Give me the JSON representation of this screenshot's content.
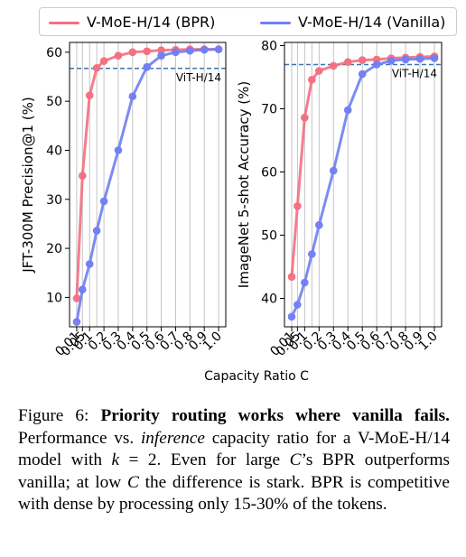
{
  "legend": {
    "bpr_label": "V-MoE-H/14 (BPR)",
    "vanilla_label": "V-MoE-H/14 (Vanilla)"
  },
  "colors": {
    "bpr": "#f2707f",
    "vanilla": "#707ef2",
    "baseline": "#3f74a8",
    "grid": "#bdbdbd"
  },
  "shared_xlabel": "Capacity Ratio C",
  "chart_data": [
    {
      "type": "line",
      "ylabel": "JFT-300M Precision@1 (%)",
      "x_categories": [
        "0.01",
        "0.05",
        "0.1",
        "0.2",
        "0.3",
        "0.4",
        "0.5",
        "0.6",
        "0.7",
        "0.8",
        "0.9",
        "1.0"
      ],
      "x": [
        0.01,
        0.05,
        0.1,
        0.15,
        0.2,
        0.3,
        0.4,
        0.5,
        0.6,
        0.7,
        0.8,
        0.9,
        1.0
      ],
      "ylim": [
        4,
        62
      ],
      "yticks": [
        10,
        20,
        30,
        40,
        50,
        60
      ],
      "grid": "vertical",
      "baseline": {
        "label": "ViT-H/14",
        "value": 56.7
      },
      "series": [
        {
          "name": "V-MoE-H/14 (BPR)",
          "values": [
            9.8,
            34.8,
            51.2,
            56.8,
            58.2,
            59.3,
            60.0,
            60.2,
            60.4,
            60.5,
            60.6,
            60.6,
            60.6
          ]
        },
        {
          "name": "V-MoE-H/14 (Vanilla)",
          "values": [
            5.0,
            11.6,
            16.8,
            23.6,
            29.6,
            40.0,
            51.0,
            57.0,
            59.3,
            60.0,
            60.3,
            60.5,
            60.6
          ]
        }
      ]
    },
    {
      "type": "line",
      "ylabel": "ImageNet 5-shot Accuracy (%)",
      "x_categories": [
        "0.01",
        "0.05",
        "0.1",
        "0.2",
        "0.3",
        "0.4",
        "0.5",
        "0.6",
        "0.7",
        "0.8",
        "0.9",
        "1.0"
      ],
      "x": [
        0.01,
        0.05,
        0.1,
        0.15,
        0.2,
        0.3,
        0.4,
        0.5,
        0.6,
        0.7,
        0.8,
        0.9,
        1.0
      ],
      "ylim": [
        35.5,
        80.5
      ],
      "yticks": [
        40,
        50,
        60,
        70,
        80
      ],
      "grid": "vertical",
      "baseline": {
        "label": "ViT-H/14",
        "value": 77.0
      },
      "series": [
        {
          "name": "V-MoE-H/14 (BPR)",
          "values": [
            43.4,
            54.6,
            68.6,
            74.6,
            76.0,
            76.8,
            77.4,
            77.7,
            77.8,
            78.0,
            78.1,
            78.2,
            78.3
          ]
        },
        {
          "name": "V-MoE-H/14 (Vanilla)",
          "values": [
            37.1,
            39.0,
            42.5,
            47.0,
            51.6,
            60.2,
            69.8,
            75.5,
            77.0,
            77.6,
            77.8,
            77.9,
            78.0
          ]
        }
      ]
    }
  ],
  "caption": {
    "label": "Figure 6:",
    "bold": "Priority routing works where vanilla fails.",
    "text1": "Performance vs.",
    "italic": "inference",
    "text2": "capacity ratio for a V-MoE-H/14 model with",
    "kvar": "k",
    "text3": "= 2.  Even for large",
    "cvar1": "C",
    "text4": "’s BPR outperforms vanilla; at low",
    "cvar2": "C",
    "text5": "the difference is stark. BPR is competitive with dense by processing only 15-30% of the tokens."
  }
}
